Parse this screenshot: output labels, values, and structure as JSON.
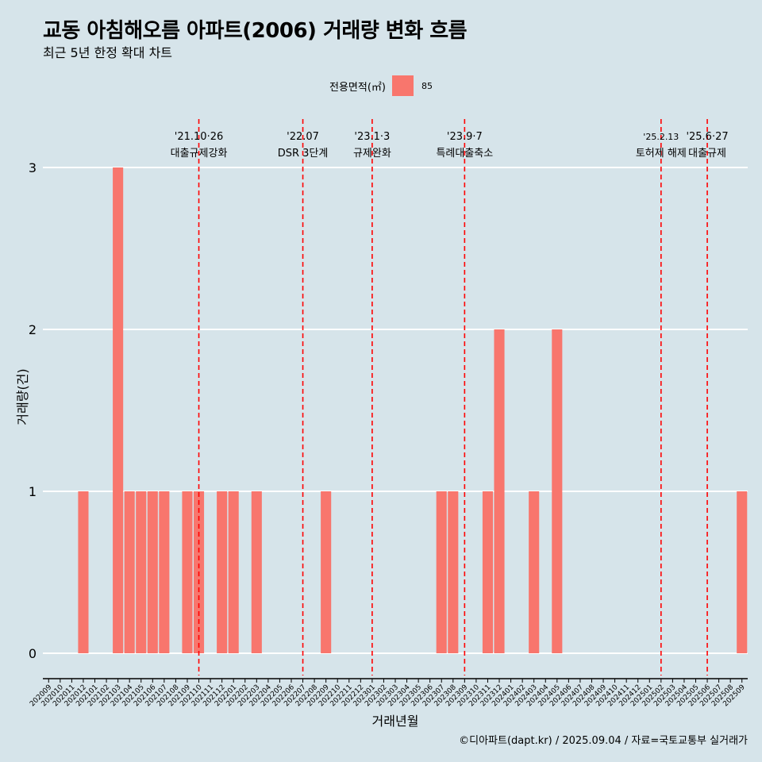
{
  "title": "교동 아침해오름 아파트(2006) 거래량 변화 흐름",
  "subtitle": "최근 5년 한정 확대 차트",
  "caption": "©디아파트(dapt.kr) / 2025.09.04 / 자료=국토교통부 실거래가",
  "legend": {
    "title": "전용면적(㎡)",
    "label": "85",
    "color": "#f8766d"
  },
  "chart_data": {
    "type": "bar",
    "xlabel": "거래년월",
    "ylabel": "거래량(건)",
    "ylim": [
      0,
      3
    ],
    "yticks": [
      0,
      1,
      2,
      3
    ],
    "grid": true,
    "bar_color": "#f8766d",
    "categories": [
      "202009",
      "202010",
      "202011",
      "202012",
      "202101",
      "202102",
      "202103",
      "202104",
      "202105",
      "202106",
      "202107",
      "202108",
      "202109",
      "202110",
      "202111",
      "202112",
      "202201",
      "202202",
      "202203",
      "202204",
      "202205",
      "202206",
      "202207",
      "202208",
      "202209",
      "202210",
      "202211",
      "202212",
      "202301",
      "202302",
      "202303",
      "202304",
      "202305",
      "202306",
      "202307",
      "202308",
      "202309",
      "202310",
      "202311",
      "202312",
      "202401",
      "202402",
      "202403",
      "202404",
      "202405",
      "202406",
      "202407",
      "202408",
      "202409",
      "202410",
      "202411",
      "202412",
      "202501",
      "202502",
      "202503",
      "202504",
      "202505",
      "202506",
      "202507",
      "202508",
      "202509"
    ],
    "series": [
      {
        "name": "85",
        "values": [
          0,
          0,
          0,
          1,
          0,
          0,
          3,
          1,
          1,
          1,
          1,
          0,
          1,
          1,
          0,
          1,
          1,
          0,
          1,
          0,
          0,
          0,
          0,
          0,
          1,
          0,
          0,
          0,
          0,
          0,
          0,
          0,
          0,
          0,
          1,
          1,
          0,
          0,
          1,
          2,
          0,
          0,
          1,
          0,
          2,
          0,
          0,
          0,
          0,
          0,
          0,
          0,
          0,
          0,
          0,
          0,
          0,
          0,
          0,
          0,
          1
        ]
      }
    ],
    "annotations": [
      {
        "x": "202110",
        "date": "'21.10·26",
        "text": "대출규제강화"
      },
      {
        "x": "202207",
        "date": "'22.07",
        "text": "DSR 3단계"
      },
      {
        "x": "202301",
        "date": "'23.1·3",
        "text": "규제완화"
      },
      {
        "x": "202309",
        "date": "'23.9·7",
        "text": "특례대출축소"
      },
      {
        "x": "202502",
        "date": "'25.2.13",
        "text": "토허제 해제"
      },
      {
        "x": "202506",
        "date": "'25.6·27",
        "text": "대출규제"
      }
    ]
  }
}
